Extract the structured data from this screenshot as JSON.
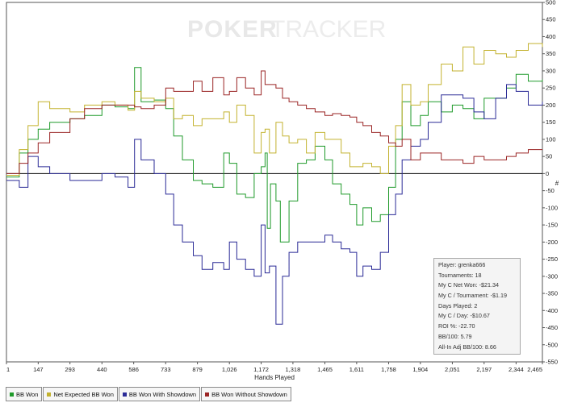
{
  "chart_data": {
    "type": "line",
    "watermark": {
      "part1": "POKER",
      "part2": "TRACKER"
    },
    "xlabel": "Hands Played",
    "ylabel": "#",
    "xlim": [
      1,
      2465
    ],
    "ylim": [
      -550,
      500
    ],
    "x_ticks": [
      1,
      147,
      293,
      440,
      586,
      733,
      879,
      1026,
      1172,
      1318,
      1465,
      1611,
      1758,
      1904,
      2051,
      2197,
      2344,
      2465
    ],
    "x_tick_labels": [
      "1",
      "147",
      "293",
      "440",
      "586",
      "733",
      "879",
      "1,026",
      "1,172",
      "1,318",
      "1,465",
      "1,611",
      "1,758",
      "1,904",
      "2,051",
      "2,197",
      "2,344",
      "2,465"
    ],
    "y_ticks": [
      500,
      450,
      400,
      350,
      300,
      250,
      200,
      150,
      100,
      50,
      0,
      -50,
      -100,
      -150,
      -200,
      -250,
      -300,
      -350,
      -400,
      -450,
      -500,
      -550
    ],
    "series": [
      {
        "name": "BB Won",
        "color": "#1f9a2a",
        "points": [
          [
            1,
            -10
          ],
          [
            60,
            60
          ],
          [
            100,
            100
          ],
          [
            147,
            130
          ],
          [
            200,
            150
          ],
          [
            293,
            160
          ],
          [
            360,
            170
          ],
          [
            440,
            200
          ],
          [
            500,
            195
          ],
          [
            560,
            190
          ],
          [
            590,
            310
          ],
          [
            620,
            210
          ],
          [
            680,
            215
          ],
          [
            733,
            190
          ],
          [
            770,
            110
          ],
          [
            810,
            40
          ],
          [
            860,
            -20
          ],
          [
            900,
            -30
          ],
          [
            950,
            -40
          ],
          [
            1000,
            60
          ],
          [
            1026,
            30
          ],
          [
            1060,
            -60
          ],
          [
            1100,
            -70
          ],
          [
            1140,
            0
          ],
          [
            1172,
            20
          ],
          [
            1190,
            60
          ],
          [
            1200,
            -160
          ],
          [
            1215,
            -30
          ],
          [
            1240,
            -80
          ],
          [
            1260,
            -200
          ],
          [
            1300,
            -80
          ],
          [
            1340,
            30
          ],
          [
            1380,
            40
          ],
          [
            1420,
            80
          ],
          [
            1465,
            40
          ],
          [
            1500,
            -30
          ],
          [
            1540,
            -60
          ],
          [
            1580,
            -90
          ],
          [
            1611,
            -150
          ],
          [
            1640,
            -100
          ],
          [
            1680,
            -140
          ],
          [
            1720,
            -120
          ],
          [
            1758,
            -40
          ],
          [
            1790,
            100
          ],
          [
            1820,
            210
          ],
          [
            1860,
            140
          ],
          [
            1904,
            170
          ],
          [
            1940,
            210
          ],
          [
            2000,
            180
          ],
          [
            2051,
            200
          ],
          [
            2100,
            190
          ],
          [
            2150,
            160
          ],
          [
            2197,
            220
          ],
          [
            2250,
            220
          ],
          [
            2300,
            250
          ],
          [
            2344,
            290
          ],
          [
            2400,
            270
          ],
          [
            2465,
            275
          ]
        ]
      },
      {
        "name": "Net Expected BB Won",
        "color": "#c3b22f",
        "points": [
          [
            1,
            -5
          ],
          [
            60,
            70
          ],
          [
            100,
            140
          ],
          [
            147,
            210
          ],
          [
            200,
            190
          ],
          [
            293,
            180
          ],
          [
            360,
            200
          ],
          [
            440,
            210
          ],
          [
            500,
            200
          ],
          [
            560,
            185
          ],
          [
            590,
            240
          ],
          [
            620,
            220
          ],
          [
            680,
            210
          ],
          [
            733,
            220
          ],
          [
            770,
            160
          ],
          [
            810,
            170
          ],
          [
            860,
            140
          ],
          [
            900,
            160
          ],
          [
            950,
            160
          ],
          [
            1000,
            180
          ],
          [
            1026,
            150
          ],
          [
            1060,
            200
          ],
          [
            1100,
            170
          ],
          [
            1140,
            60
          ],
          [
            1172,
            120
          ],
          [
            1190,
            130
          ],
          [
            1210,
            60
          ],
          [
            1240,
            150
          ],
          [
            1270,
            110
          ],
          [
            1300,
            90
          ],
          [
            1340,
            100
          ],
          [
            1380,
            60
          ],
          [
            1420,
            120
          ],
          [
            1465,
            100
          ],
          [
            1500,
            100
          ],
          [
            1540,
            60
          ],
          [
            1580,
            20
          ],
          [
            1611,
            20
          ],
          [
            1640,
            30
          ],
          [
            1680,
            20
          ],
          [
            1720,
            0
          ],
          [
            1758,
            80
          ],
          [
            1790,
            140
          ],
          [
            1820,
            260
          ],
          [
            1860,
            200
          ],
          [
            1904,
            210
          ],
          [
            1940,
            260
          ],
          [
            2000,
            320
          ],
          [
            2051,
            300
          ],
          [
            2100,
            370
          ],
          [
            2150,
            320
          ],
          [
            2197,
            360
          ],
          [
            2250,
            350
          ],
          [
            2300,
            340
          ],
          [
            2344,
            360
          ],
          [
            2400,
            380
          ],
          [
            2465,
            370
          ]
        ]
      },
      {
        "name": "BB Won With Showdown",
        "color": "#2a2a96",
        "points": [
          [
            1,
            -20
          ],
          [
            60,
            -40
          ],
          [
            100,
            50
          ],
          [
            147,
            20
          ],
          [
            200,
            0
          ],
          [
            293,
            -20
          ],
          [
            360,
            -20
          ],
          [
            440,
            0
          ],
          [
            500,
            -10
          ],
          [
            560,
            -40
          ],
          [
            590,
            100
          ],
          [
            620,
            40
          ],
          [
            680,
            0
          ],
          [
            733,
            -60
          ],
          [
            770,
            -150
          ],
          [
            810,
            -200
          ],
          [
            860,
            -240
          ],
          [
            900,
            -280
          ],
          [
            950,
            -260
          ],
          [
            1000,
            -280
          ],
          [
            1026,
            -200
          ],
          [
            1060,
            -250
          ],
          [
            1100,
            -280
          ],
          [
            1140,
            -300
          ],
          [
            1172,
            -150
          ],
          [
            1190,
            -290
          ],
          [
            1210,
            -270
          ],
          [
            1240,
            -440
          ],
          [
            1270,
            -300
          ],
          [
            1300,
            -230
          ],
          [
            1340,
            -200
          ],
          [
            1380,
            -200
          ],
          [
            1420,
            -200
          ],
          [
            1465,
            -180
          ],
          [
            1500,
            -200
          ],
          [
            1540,
            -220
          ],
          [
            1580,
            -230
          ],
          [
            1611,
            -300
          ],
          [
            1640,
            -270
          ],
          [
            1680,
            -280
          ],
          [
            1720,
            -230
          ],
          [
            1758,
            -120
          ],
          [
            1790,
            -60
          ],
          [
            1820,
            40
          ],
          [
            1860,
            80
          ],
          [
            1904,
            100
          ],
          [
            1940,
            150
          ],
          [
            2000,
            230
          ],
          [
            2051,
            230
          ],
          [
            2100,
            220
          ],
          [
            2150,
            180
          ],
          [
            2197,
            160
          ],
          [
            2250,
            220
          ],
          [
            2300,
            260
          ],
          [
            2344,
            240
          ],
          [
            2400,
            200
          ],
          [
            2465,
            210
          ]
        ]
      },
      {
        "name": "BB Won Without Showdown",
        "color": "#9a2424",
        "points": [
          [
            1,
            0
          ],
          [
            60,
            30
          ],
          [
            100,
            60
          ],
          [
            147,
            90
          ],
          [
            200,
            120
          ],
          [
            293,
            160
          ],
          [
            360,
            190
          ],
          [
            440,
            200
          ],
          [
            500,
            200
          ],
          [
            560,
            200
          ],
          [
            590,
            195
          ],
          [
            620,
            190
          ],
          [
            680,
            200
          ],
          [
            733,
            250
          ],
          [
            770,
            240
          ],
          [
            810,
            240
          ],
          [
            860,
            270
          ],
          [
            900,
            240
          ],
          [
            950,
            280
          ],
          [
            1000,
            230
          ],
          [
            1026,
            240
          ],
          [
            1060,
            280
          ],
          [
            1100,
            250
          ],
          [
            1140,
            230
          ],
          [
            1172,
            300
          ],
          [
            1190,
            260
          ],
          [
            1240,
            250
          ],
          [
            1270,
            220
          ],
          [
            1300,
            210
          ],
          [
            1340,
            200
          ],
          [
            1380,
            190
          ],
          [
            1420,
            180
          ],
          [
            1465,
            170
          ],
          [
            1500,
            175
          ],
          [
            1540,
            170
          ],
          [
            1580,
            165
          ],
          [
            1611,
            150
          ],
          [
            1640,
            140
          ],
          [
            1680,
            120
          ],
          [
            1720,
            110
          ],
          [
            1758,
            90
          ],
          [
            1790,
            80
          ],
          [
            1820,
            100
          ],
          [
            1860,
            40
          ],
          [
            1904,
            60
          ],
          [
            1940,
            60
          ],
          [
            2000,
            40
          ],
          [
            2051,
            40
          ],
          [
            2100,
            30
          ],
          [
            2150,
            50
          ],
          [
            2197,
            40
          ],
          [
            2250,
            40
          ],
          [
            2300,
            50
          ],
          [
            2344,
            60
          ],
          [
            2400,
            70
          ],
          [
            2465,
            70
          ]
        ]
      }
    ]
  },
  "stats": [
    "Player: grenka666",
    "Tournaments: 18",
    "My C Net Won: -$21.34",
    "My C / Tournament: -$1.19",
    "Days Played: 2",
    "My C / Day: -$10.67",
    "ROI %: -22.70",
    "BB/100: 5.79",
    "All-In Adj BB/100: 8.66"
  ],
  "legend": [
    {
      "label": "BB Won",
      "color": "#1f9a2a"
    },
    {
      "label": "Net Expected BB Won",
      "color": "#c3b22f"
    },
    {
      "label": "BB Won With Showdown",
      "color": "#2a2a96"
    },
    {
      "label": "BB Won Without Showdown",
      "color": "#9a2424"
    }
  ]
}
